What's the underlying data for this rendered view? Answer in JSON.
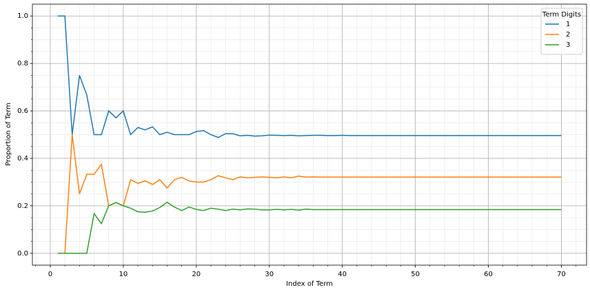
{
  "chart_data": {
    "type": "line",
    "xlabel": "Index of Term",
    "ylabel": "Proportion of Term",
    "legend_title": "Term Digits",
    "legend": "upper right",
    "grid": true,
    "minor_grid": true,
    "x": [
      1,
      2,
      3,
      4,
      5,
      6,
      7,
      8,
      9,
      10,
      11,
      12,
      13,
      14,
      15,
      16,
      17,
      18,
      19,
      20,
      21,
      22,
      23,
      24,
      25,
      26,
      27,
      28,
      29,
      30,
      31,
      32,
      33,
      34,
      35,
      36,
      37,
      38,
      39,
      40,
      41,
      42,
      43,
      44,
      45,
      46,
      47,
      48,
      49,
      50,
      51,
      52,
      53,
      54,
      55,
      56,
      57,
      58,
      59,
      60,
      61,
      62,
      63,
      64,
      65,
      66,
      67,
      68,
      69,
      70
    ],
    "series": [
      {
        "name": "1",
        "color": "#1f77b4",
        "values": [
          1,
          1,
          0.5,
          0.75,
          0.667,
          0.5,
          0.5,
          0.6,
          0.571,
          0.6,
          0.5,
          0.53,
          0.52,
          0.533,
          0.5,
          0.51,
          0.5,
          0.5,
          0.5,
          0.513,
          0.517,
          0.5,
          0.488,
          0.504,
          0.504,
          0.495,
          0.497,
          0.494,
          0.495,
          0.498,
          0.497,
          0.496,
          0.497,
          0.495,
          0.496,
          0.497,
          0.497,
          0.496,
          0.496,
          0.497,
          0.496,
          0.496,
          0.496,
          0.496,
          0.496,
          0.496,
          0.496,
          0.496,
          0.496,
          0.496,
          0.496,
          0.496,
          0.496,
          0.496,
          0.496,
          0.496,
          0.496,
          0.496,
          0.496,
          0.496,
          0.496,
          0.496,
          0.496,
          0.496,
          0.496,
          0.496,
          0.496,
          0.496,
          0.496,
          0.496
        ]
      },
      {
        "name": "2",
        "color": "#ff7f0e",
        "values": [
          0,
          0,
          0.5,
          0.25,
          0.333,
          0.333,
          0.375,
          0.2,
          0.214,
          0.2,
          0.31,
          0.295,
          0.305,
          0.29,
          0.31,
          0.275,
          0.31,
          0.32,
          0.305,
          0.3,
          0.3,
          0.31,
          0.327,
          0.318,
          0.31,
          0.322,
          0.318,
          0.32,
          0.322,
          0.32,
          0.318,
          0.322,
          0.318,
          0.325,
          0.321,
          0.322,
          0.321,
          0.321,
          0.321,
          0.321,
          0.321,
          0.321,
          0.321,
          0.321,
          0.321,
          0.321,
          0.321,
          0.321,
          0.321,
          0.321,
          0.321,
          0.321,
          0.321,
          0.321,
          0.321,
          0.321,
          0.321,
          0.321,
          0.321,
          0.321,
          0.321,
          0.321,
          0.321,
          0.321,
          0.321,
          0.321,
          0.321,
          0.321,
          0.321,
          0.321
        ]
      },
      {
        "name": "3",
        "color": "#2ca02c",
        "values": [
          0,
          0,
          0,
          0,
          0,
          0.167,
          0.125,
          0.2,
          0.214,
          0.2,
          0.19,
          0.175,
          0.173,
          0.178,
          0.193,
          0.215,
          0.195,
          0.18,
          0.195,
          0.185,
          0.18,
          0.19,
          0.186,
          0.18,
          0.186,
          0.183,
          0.187,
          0.186,
          0.183,
          0.183,
          0.185,
          0.183,
          0.185,
          0.182,
          0.186,
          0.184,
          0.184,
          0.184,
          0.184,
          0.184,
          0.184,
          0.184,
          0.184,
          0.184,
          0.184,
          0.184,
          0.184,
          0.184,
          0.184,
          0.184,
          0.184,
          0.184,
          0.184,
          0.184,
          0.184,
          0.184,
          0.184,
          0.184,
          0.184,
          0.184,
          0.184,
          0.184,
          0.184,
          0.184,
          0.184,
          0.184,
          0.184,
          0.184,
          0.184,
          0.184
        ]
      }
    ],
    "xlim": [
      -2.45,
      73.45
    ],
    "xticks": [
      0,
      10,
      20,
      30,
      40,
      50,
      60,
      70
    ],
    "ylim": [
      -0.05,
      1.05
    ],
    "yticks": [
      {
        "value": 0,
        "label": "0.0"
      },
      0.2,
      0.4,
      0.6,
      0.8,
      {
        "value": 1,
        "label": "1.0"
      }
    ]
  }
}
